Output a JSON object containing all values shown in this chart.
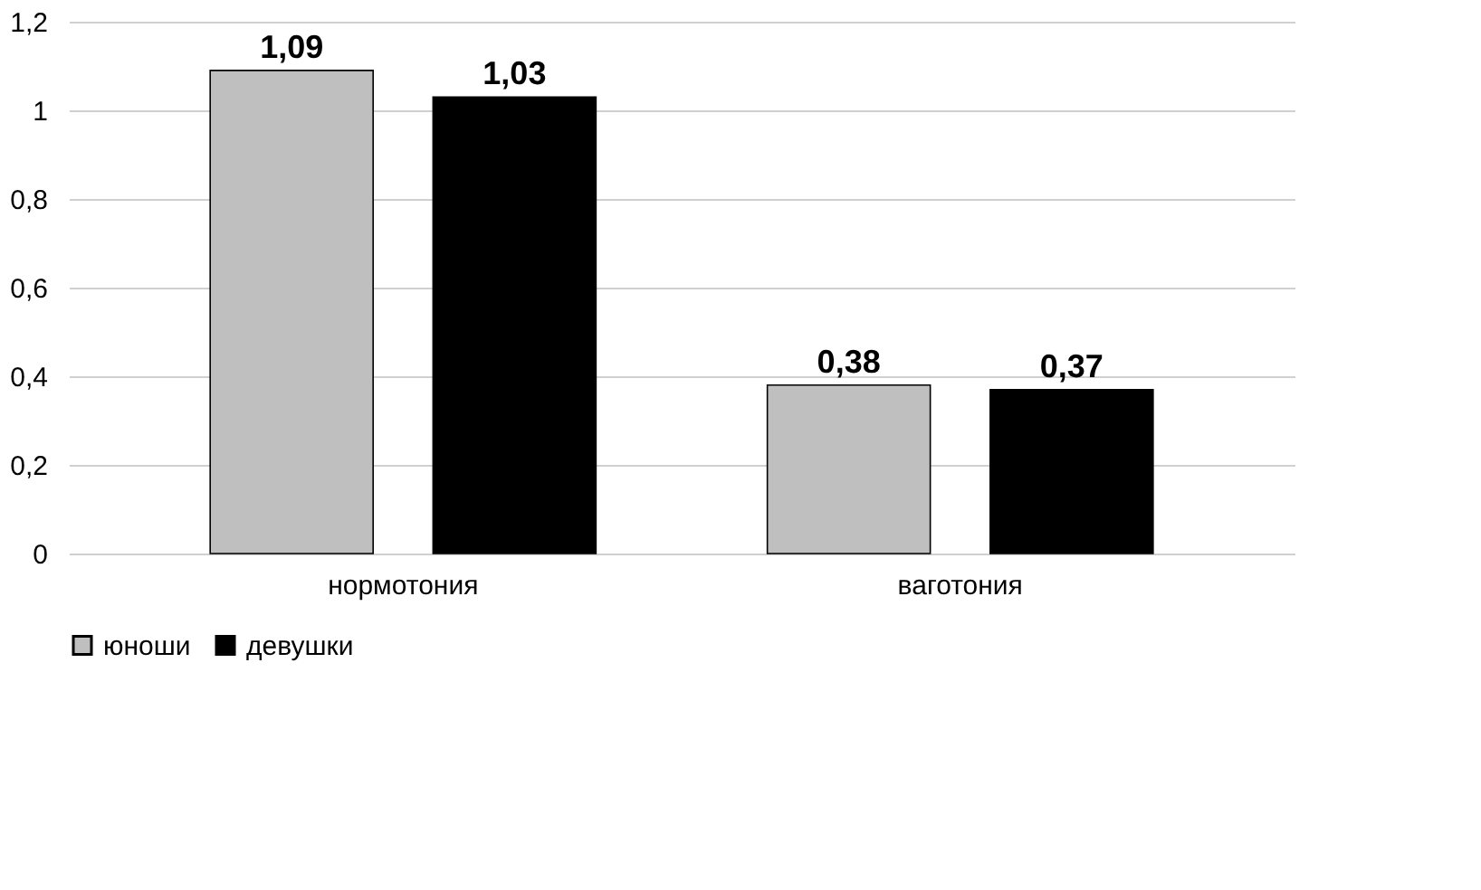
{
  "chart_data": {
    "type": "bar",
    "categories": [
      "нормотония",
      "ваготония"
    ],
    "series": [
      {
        "name": "юноши",
        "color": "#bfbfbf",
        "values": [
          1.09,
          0.38
        ],
        "value_labels": [
          "1,09",
          "0,38"
        ]
      },
      {
        "name": "девушки",
        "color": "#000000",
        "values": [
          1.03,
          0.37
        ],
        "value_labels": [
          "1,03",
          "0,37"
        ]
      }
    ],
    "ylim": [
      0,
      1.2
    ],
    "yticks": [
      0,
      {
        "value": 0.2,
        "label": "0,2"
      },
      {
        "value": 0.4,
        "label": "0,4"
      },
      {
        "value": 0.6,
        "label": "0,6"
      },
      {
        "value": 0.8,
        "label": "0,8"
      },
      1,
      {
        "value": 1.2,
        "label": "1,2"
      }
    ],
    "grid": "y",
    "legend": "bottom"
  }
}
